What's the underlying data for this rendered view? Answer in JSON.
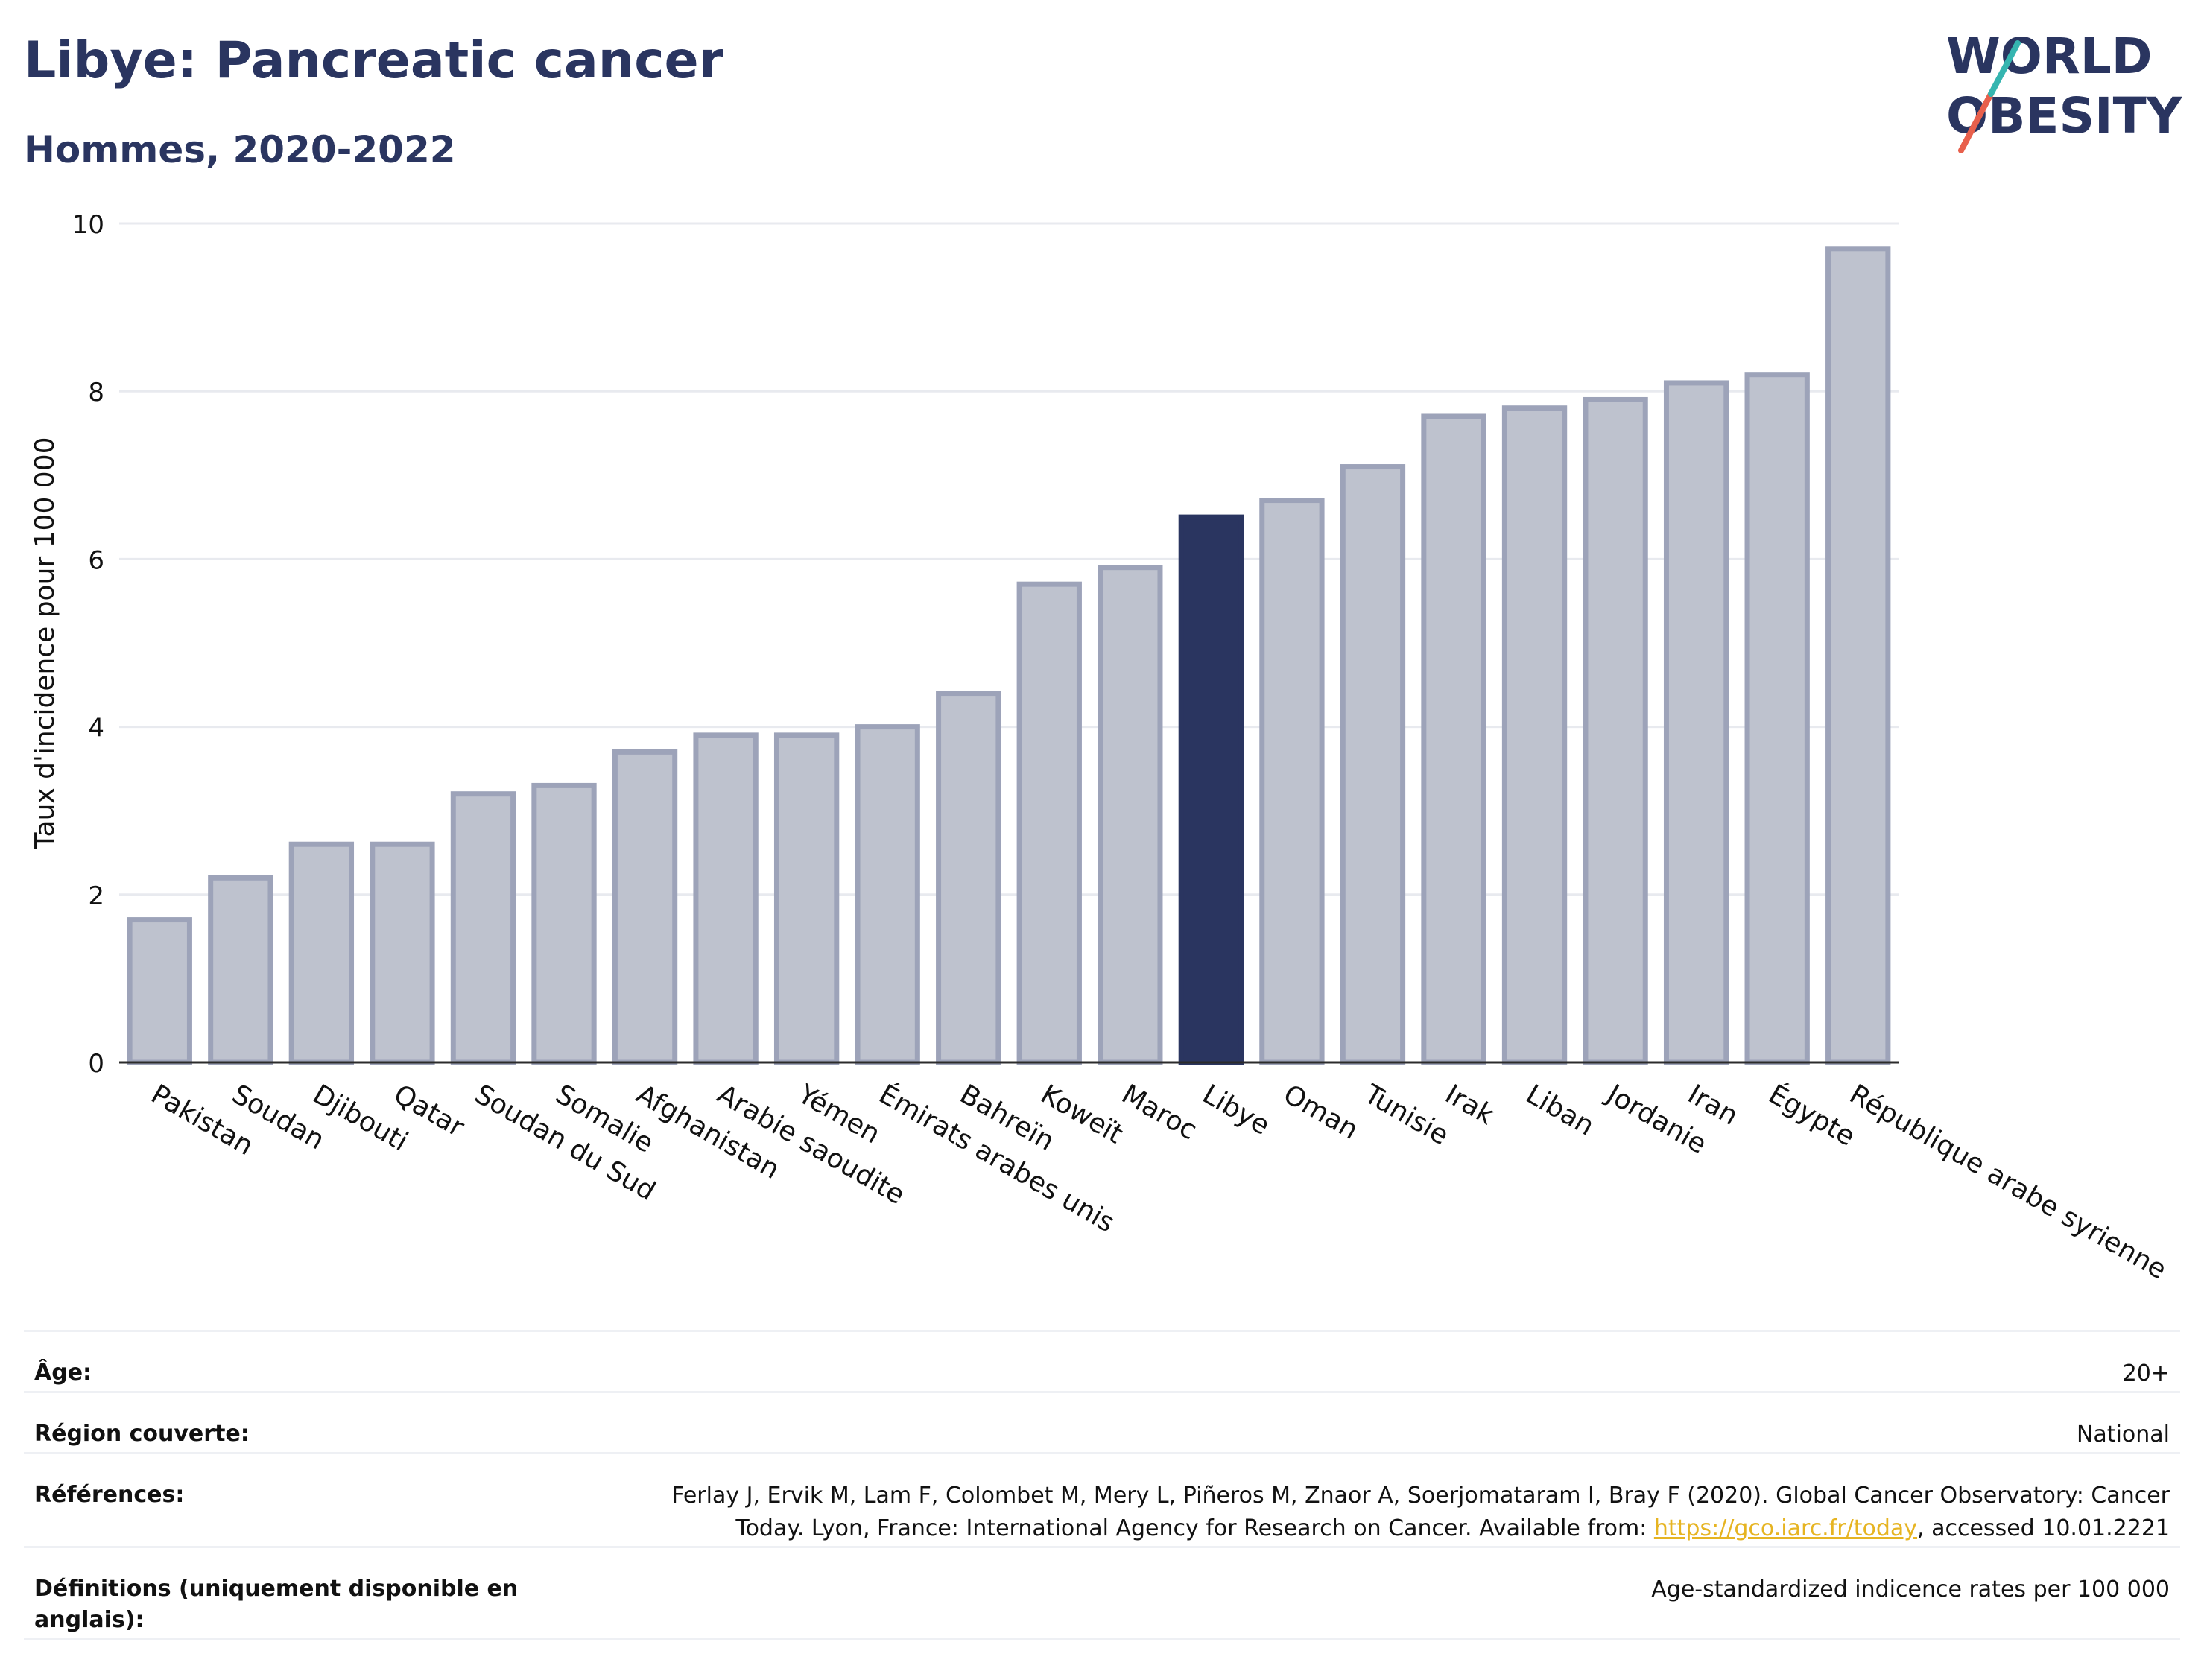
{
  "header": {
    "title": "Libye: Pancreatic cancer",
    "subtitle": "Hommes, 2020-2022"
  },
  "logo": {
    "line1": "WORLD",
    "line2": "OBESITY"
  },
  "colors": {
    "highlight": "#2a3560",
    "bar": "#bec2ce",
    "bar_border": "#9da3b9",
    "grid": "#e8eaef",
    "link": "#e6b422",
    "logo_slash_red": "#e8604c",
    "logo_slash_teal": "#35b5b0"
  },
  "chart_data": {
    "type": "bar",
    "title": "Libye: Pancreatic cancer",
    "subtitle": "Hommes, 2020-2022",
    "xlabel": "",
    "ylabel": "Taux d'incidence pour 100 000",
    "ylim": [
      0,
      10
    ],
    "yticks": [
      0,
      2,
      4,
      6,
      8,
      10
    ],
    "grid": true,
    "highlight": "Libye",
    "categories": [
      "Pakistan",
      "Soudan",
      "Djibouti",
      "Qatar",
      "Soudan du Sud",
      "Somalie",
      "Afghanistan",
      "Arabie saoudite",
      "Yémen",
      "Émirats arabes unis",
      "Bahreïn",
      "Koweït",
      "Maroc",
      "Libye",
      "Oman",
      "Tunisie",
      "Irak",
      "Liban",
      "Jordanie",
      "Iran",
      "Égypte",
      "République arabe syrienne"
    ],
    "values": [
      1.7,
      2.2,
      2.6,
      2.6,
      3.2,
      3.3,
      3.7,
      3.9,
      3.9,
      4.0,
      4.4,
      5.7,
      5.9,
      6.5,
      6.7,
      7.1,
      7.7,
      7.8,
      7.9,
      8.1,
      8.2,
      9.7
    ]
  },
  "metadata": {
    "age_label": "Âge:",
    "age_value": "20+",
    "region_label": "Région couverte:",
    "region_value": "National",
    "references_label": "Références:",
    "references_line1": "Ferlay J, Ervik M, Lam F, Colombet M, Mery L, Piñeros M, Znaor A, Soerjomataram I, Bray F (2020). Global Cancer Observatory: Cancer",
    "references_line2_prefix": "Today. Lyon, France: International Agency for Research on Cancer. Available from: ",
    "references_link": "https://gco.iarc.fr/today",
    "references_line2_suffix": ", accessed 10.01.2221",
    "definitions_label": "Définitions (uniquement disponible en anglais):",
    "definitions_value": "Age-standardized indicence rates per 100 000"
  }
}
